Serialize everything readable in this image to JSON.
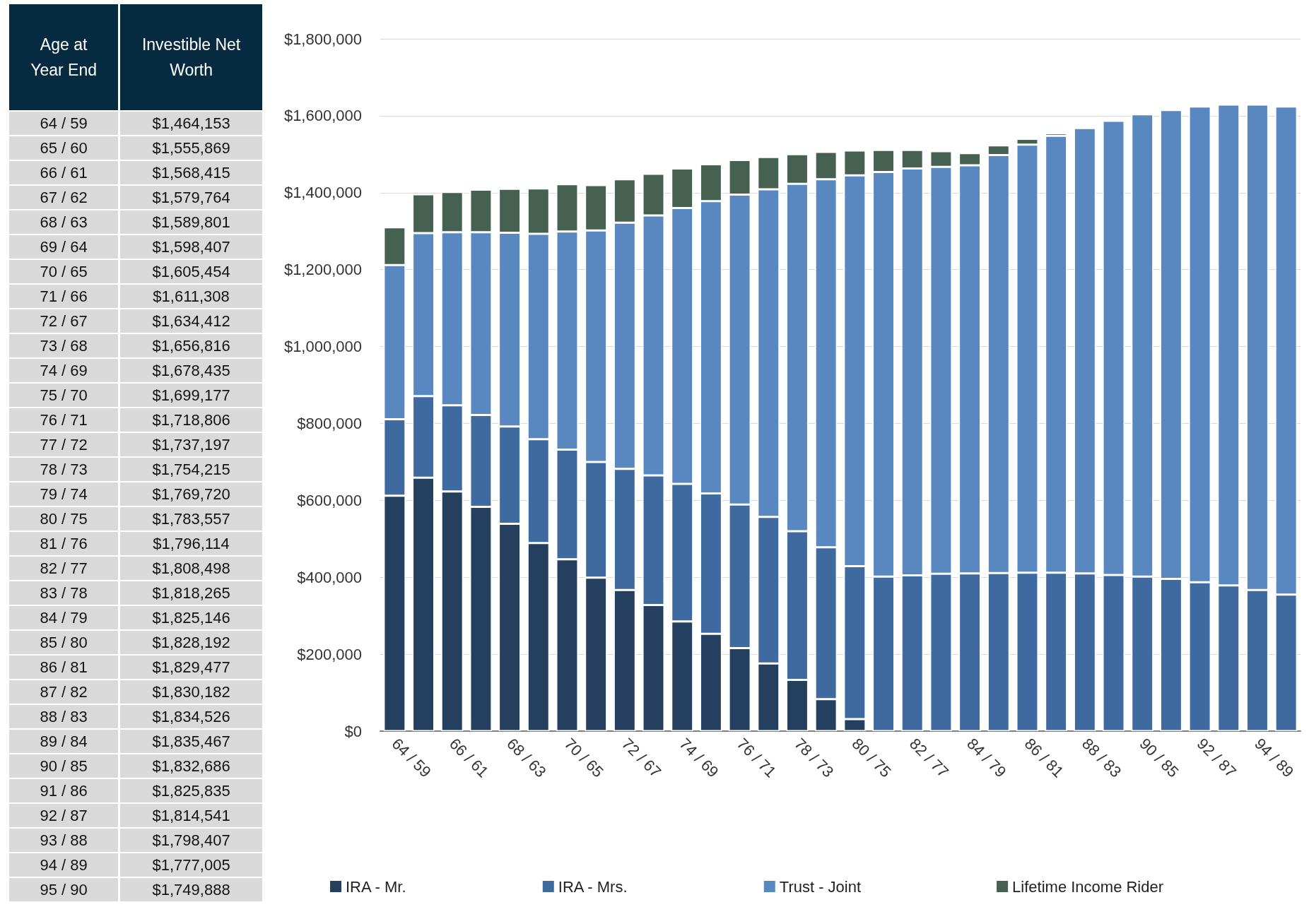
{
  "chart_data": [
    {
      "type": "other",
      "xlabel": "Age at Year End",
      "ylabel": "Investible Net Worth",
      "categories": [
        "64 / 59",
        "65 / 60",
        "66 / 61",
        "67 / 62",
        "68 / 63",
        "69 / 64",
        "70 / 65",
        "71 / 66",
        "72 / 67",
        "73 / 68",
        "74 / 69",
        "75 / 70",
        "76 / 71",
        "77 / 72",
        "78 / 73",
        "79 / 74",
        "80 / 75",
        "81 / 76",
        "82 / 77",
        "83 / 78",
        "84 / 79",
        "85 / 80",
        "86 / 81",
        "87 / 82",
        "88 / 83",
        "89 / 84",
        "90 / 85",
        "91 / 86",
        "92 / 87",
        "93 / 88",
        "94 / 89",
        "95 / 90"
      ],
      "value_labels": [
        "$1,464,153",
        "$1,555,869",
        "$1,568,415",
        "$1,579,764",
        "$1,589,801",
        "$1,598,407",
        "$1,605,454",
        "$1,611,308",
        "$1,634,412",
        "$1,656,816",
        "$1,678,435",
        "$1,699,177",
        "$1,718,806",
        "$1,737,197",
        "$1,754,215",
        "$1,769,720",
        "$1,783,557",
        "$1,796,114",
        "$1,808,498",
        "$1,818,265",
        "$1,825,146",
        "$1,828,192",
        "$1,829,477",
        "$1,830,182",
        "$1,834,526",
        "$1,835,467",
        "$1,832,686",
        "$1,825,835",
        "$1,814,541",
        "$1,798,407",
        "$1,777,005",
        "$1,749,888"
      ]
    },
    {
      "type": "bar",
      "stacked": true,
      "grid": "y",
      "legend": "bottom",
      "categories": [
        "64 / 59",
        null,
        "66 / 61",
        null,
        "68 / 63",
        null,
        "70 / 65",
        null,
        "72 / 67",
        null,
        "74 / 69",
        null,
        "76 / 71",
        null,
        "78 / 73",
        null,
        "80 / 75",
        null,
        "82 / 77",
        null,
        "84 / 79",
        null,
        "86 / 81",
        null,
        "88 / 83",
        null,
        "90 / 85",
        null,
        "92 / 87",
        null,
        "94 / 89",
        null
      ],
      "ylim": [
        0,
        1800000
      ],
      "yticks": [
        {
          "value": 0,
          "label": "$0"
        },
        {
          "value": 200000,
          "label": "$200,000"
        },
        {
          "value": 400000,
          "label": "$400,000"
        },
        {
          "value": 600000,
          "label": "$600,000"
        },
        {
          "value": 800000,
          "label": "$800,000"
        },
        {
          "value": 1000000,
          "label": "$1,000,000"
        },
        {
          "value": 1200000,
          "label": "$1,200,000"
        },
        {
          "value": 1400000,
          "label": "$1,400,000"
        },
        {
          "value": 1600000,
          "label": "$1,600,000"
        },
        {
          "value": 1800000,
          "label": "$1,800,000"
        }
      ],
      "series": [
        {
          "name": "IRA - Mr.",
          "color": "#253f5f",
          "values": [
            612000,
            659000,
            623000,
            583000,
            539000,
            489000,
            447000,
            399000,
            367000,
            328000,
            285000,
            253000,
            216000,
            176000,
            133000,
            83000,
            31000,
            0,
            0,
            0,
            0,
            0,
            0,
            0,
            0,
            0,
            0,
            0,
            0,
            0,
            0,
            0
          ]
        },
        {
          "name": "IRA - Mrs.",
          "color": "#3e6aa0",
          "values": [
            199000,
            212000,
            224000,
            239000,
            253000,
            270000,
            285000,
            301000,
            315000,
            337000,
            358000,
            365000,
            373000,
            381000,
            387000,
            395000,
            398000,
            402000,
            405000,
            409000,
            410000,
            411000,
            412000,
            412000,
            410000,
            406000,
            402000,
            396000,
            387000,
            379000,
            367000,
            355000
          ]
        },
        {
          "name": "Trust - Joint",
          "color": "#5987c0",
          "values": [
            401000,
            424000,
            450000,
            475000,
            504000,
            534000,
            567000,
            602000,
            640000,
            676000,
            717000,
            760000,
            806000,
            852000,
            903000,
            957000,
            1016000,
            1052000,
            1058000,
            1058000,
            1061000,
            1087000,
            1113000,
            1136000,
            1158000,
            1181000,
            1202000,
            1219000,
            1237000,
            1250000,
            1262000,
            1269000
          ]
        },
        {
          "name": "Lifetime Income Rider",
          "color": "#466052",
          "values": [
            98000,
            101000,
            105000,
            111000,
            114000,
            118000,
            123000,
            118000,
            113000,
            108000,
            103000,
            96000,
            90000,
            84000,
            77000,
            71000,
            65000,
            57000,
            48000,
            41000,
            32000,
            25000,
            15000,
            7000,
            0,
            0,
            0,
            0,
            0,
            0,
            0,
            0
          ]
        }
      ]
    }
  ]
}
